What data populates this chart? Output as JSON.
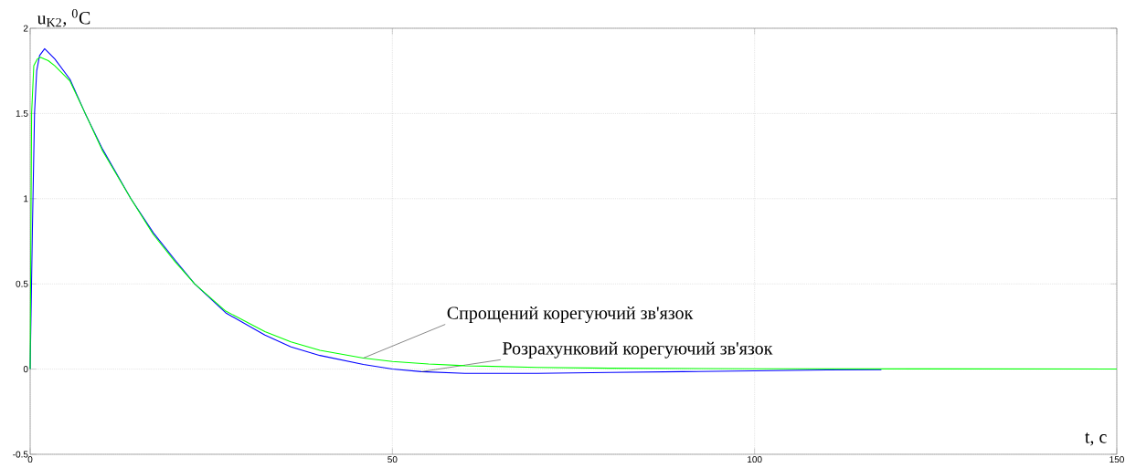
{
  "chart_data": {
    "type": "line",
    "xlabel": "t, c",
    "ylabel": "u$_{K2}$, $^{0}$C",
    "xlim": [
      0,
      150
    ],
    "ylim": [
      -0.5,
      2
    ],
    "xticks": [
      0,
      50,
      100,
      150
    ],
    "yticks": [
      -0.5,
      0,
      0.5,
      1,
      1.5,
      2
    ],
    "grid": true,
    "series": [
      {
        "name": "Розрахунковий корегуючий зв'язок",
        "color": "#0000ff",
        "x": [
          0,
          0.3,
          0.6,
          0.9,
          1.3,
          2,
          3.4,
          5.5,
          7.6,
          10,
          13.9,
          17,
          20,
          22.7,
          27,
          32.4,
          36,
          40,
          46,
          50,
          54,
          60,
          70,
          80,
          90,
          100,
          110,
          117.5
        ],
        "values": [
          0,
          0.8,
          1.5,
          1.75,
          1.84,
          1.88,
          1.82,
          1.7,
          1.5,
          1.29,
          1.0,
          0.8,
          0.64,
          0.5,
          0.33,
          0.2,
          0.13,
          0.08,
          0.027,
          0.0,
          -0.015,
          -0.025,
          -0.025,
          -0.02,
          -0.015,
          -0.01,
          -0.005,
          -0.003
        ]
      },
      {
        "name": "Спрощений корегуючий зв'язок",
        "color": "#00ff00",
        "x": [
          0,
          0.1,
          0.2,
          0.5,
          1.0,
          1.4,
          2.5,
          3.4,
          5.5,
          7.6,
          10,
          13.9,
          17,
          20,
          22.7,
          27,
          32.4,
          36,
          40,
          46,
          50,
          55,
          60,
          70,
          80,
          100,
          150
        ],
        "values": [
          0,
          0.8,
          1.5,
          1.78,
          1.82,
          1.83,
          1.81,
          1.78,
          1.69,
          1.5,
          1.28,
          1.0,
          0.79,
          0.63,
          0.5,
          0.34,
          0.22,
          0.16,
          0.11,
          0.065,
          0.045,
          0.03,
          0.02,
          0.01,
          0.005,
          0.002,
          0
        ]
      }
    ]
  }
}
